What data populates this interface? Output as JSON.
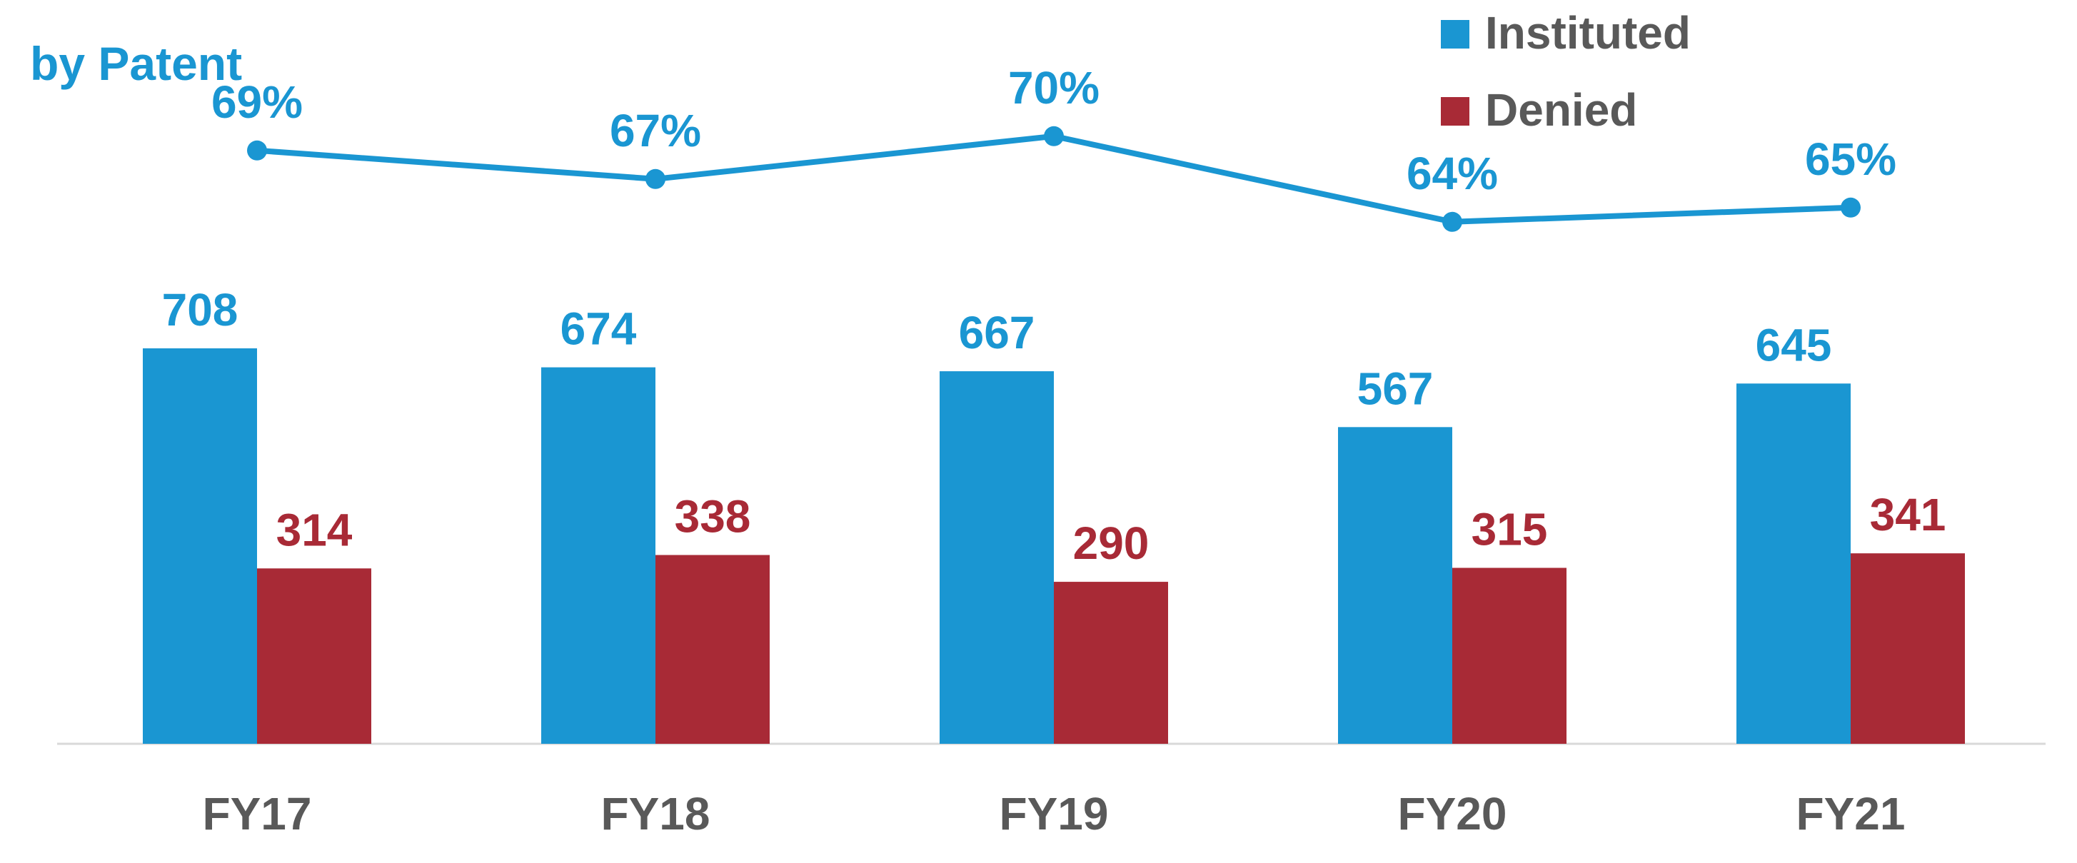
{
  "chart_data": {
    "type": "bar",
    "title": "by Patent",
    "categories": [
      "FY17",
      "FY18",
      "FY19",
      "FY20",
      "FY21"
    ],
    "series": [
      {
        "name": "Instituted",
        "type": "bar",
        "values": [
          708,
          674,
          667,
          567,
          645
        ],
        "color": "#1a96d2"
      },
      {
        "name": "Denied",
        "type": "bar",
        "values": [
          314,
          338,
          290,
          315,
          341
        ],
        "color": "#a82a36"
      }
    ],
    "rate_line": {
      "values": [
        69,
        67,
        70,
        64,
        65
      ],
      "labels": [
        "69%",
        "67%",
        "70%",
        "64%",
        "65%"
      ],
      "color": "#1a96d2"
    },
    "legend": {
      "position": "top-right",
      "items": [
        "Instituted",
        "Denied"
      ]
    },
    "bar_ylim": [
      0,
      720
    ],
    "rate_ylim": [
      0,
      100
    ],
    "grid": false,
    "colors": {
      "title": "#1a96d2",
      "axis_label": "#595959",
      "axis_line": "#d9d9d9",
      "legend_text": "#595959"
    }
  }
}
